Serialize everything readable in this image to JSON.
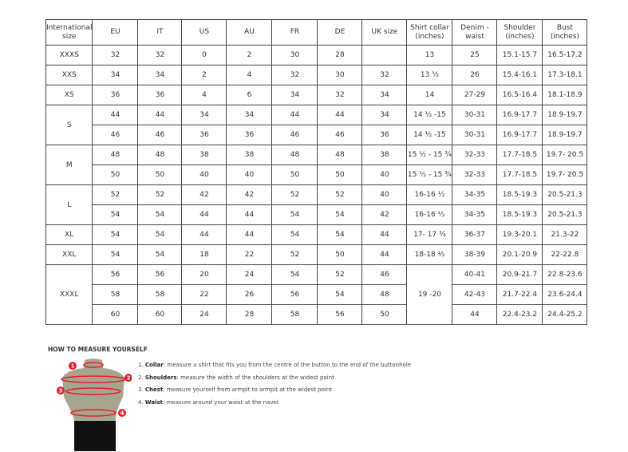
{
  "table": {
    "headers": [
      "International size",
      "EU",
      "IT",
      "US",
      "AU",
      "FR",
      "DE",
      "UK size",
      "Shirt collar (inches)",
      "Denim - waist",
      "Shoulder (inches)",
      "Bust (inches)"
    ],
    "groups": [
      {
        "size": "XXXS",
        "rows": [
          [
            "32",
            "32",
            "0",
            "2",
            "30",
            "28",
            "",
            "13",
            "25",
            "15.1-15.7",
            "16.5-17.2"
          ]
        ]
      },
      {
        "size": "XXS",
        "rows": [
          [
            "34",
            "34",
            "2",
            "4",
            "32",
            "30",
            "32",
            "13 ½",
            "26",
            "15.4-16.1",
            "17.3-18.1"
          ]
        ]
      },
      {
        "size": "XS",
        "rows": [
          [
            "36",
            "36",
            "4",
            "6",
            "34",
            "32",
            "34",
            "14",
            "27-29",
            "16.5-16.4",
            "18.1-18.9"
          ]
        ]
      },
      {
        "size": "S",
        "rows": [
          [
            "44",
            "44",
            "34",
            "34",
            "44",
            "44",
            "34",
            "14 ½ -15",
            "30-31",
            "16.9-17.7",
            "18.9-19.7"
          ],
          [
            "46",
            "46",
            "36",
            "36",
            "46",
            "46",
            "36",
            "14 ½ -15",
            "30-31",
            "16.9-17.7",
            "18.9-19.7"
          ]
        ]
      },
      {
        "size": "M",
        "rows": [
          [
            "48",
            "48",
            "38",
            "38",
            "48",
            "48",
            "38",
            "15 ½ - 15 ¾",
            "32-33",
            "17.7-18.5",
            "19.7- 20.5"
          ],
          [
            "50",
            "50",
            "40",
            "40",
            "50",
            "50",
            "40",
            "15 ½ - 15 ¾",
            "32-33",
            "17.7-18.5",
            "19.7- 20.5"
          ]
        ]
      },
      {
        "size": "L",
        "rows": [
          [
            "52",
            "52",
            "42",
            "42",
            "52",
            "52",
            "40",
            "16-16 ½",
            "34-35",
            "18.5-19.3",
            "20.5-21.3"
          ],
          [
            "54",
            "54",
            "44",
            "44",
            "54",
            "54",
            "42",
            "16-16 ½",
            "34-35",
            "18.5-19.3",
            "20.5-21.3"
          ]
        ]
      },
      {
        "size": "XL",
        "rows": [
          [
            "54",
            "54",
            "44",
            "44",
            "54",
            "54",
            "44",
            "17- 17 ¾",
            "36-37",
            "19.3-20.1",
            "21.3-22"
          ]
        ]
      },
      {
        "size": "XXL",
        "rows": [
          [
            "54",
            "54",
            "18",
            "22",
            "52",
            "50",
            "44",
            "18-18 ½",
            "38-39",
            "20.1-20.9",
            "22-22.8"
          ]
        ]
      },
      {
        "size": "XXXL",
        "collar_merged": "19 -20",
        "rows": [
          [
            "56",
            "56",
            "20",
            "24",
            "54",
            "52",
            "46",
            null,
            "40-41",
            "20.9-21.7",
            "22.8-23.6"
          ],
          [
            "58",
            "58",
            "22",
            "26",
            "56",
            "54",
            "48",
            null,
            "42-43",
            "21.7-22.4",
            "23.6-24.4"
          ],
          [
            "60",
            "60",
            "24",
            "28",
            "58",
            "56",
            "50",
            null,
            "44",
            "22.4-23.2",
            "24.4-25.2"
          ]
        ]
      }
    ]
  },
  "guide": {
    "title": "HOW TO MEASURE YOURSELF",
    "markers": [
      "1",
      "2",
      "3",
      "4"
    ],
    "accent": "#e3202b",
    "steps": [
      {
        "num": "1.",
        "term": "Collar",
        "text": ": measure a shirt that fits you from the centre of the button to the end of the buttonhole"
      },
      {
        "num": "2.",
        "term": "Shoulders",
        "text": ": measure the width of the shoulders at the widest point"
      },
      {
        "num": "3.",
        "term": "Chest",
        "text": ": measure yourself from armpit to armpit at the widest point"
      },
      {
        "num": "4.",
        "term": "Waist",
        "text": ": measure around your waist at the navel"
      }
    ]
  }
}
